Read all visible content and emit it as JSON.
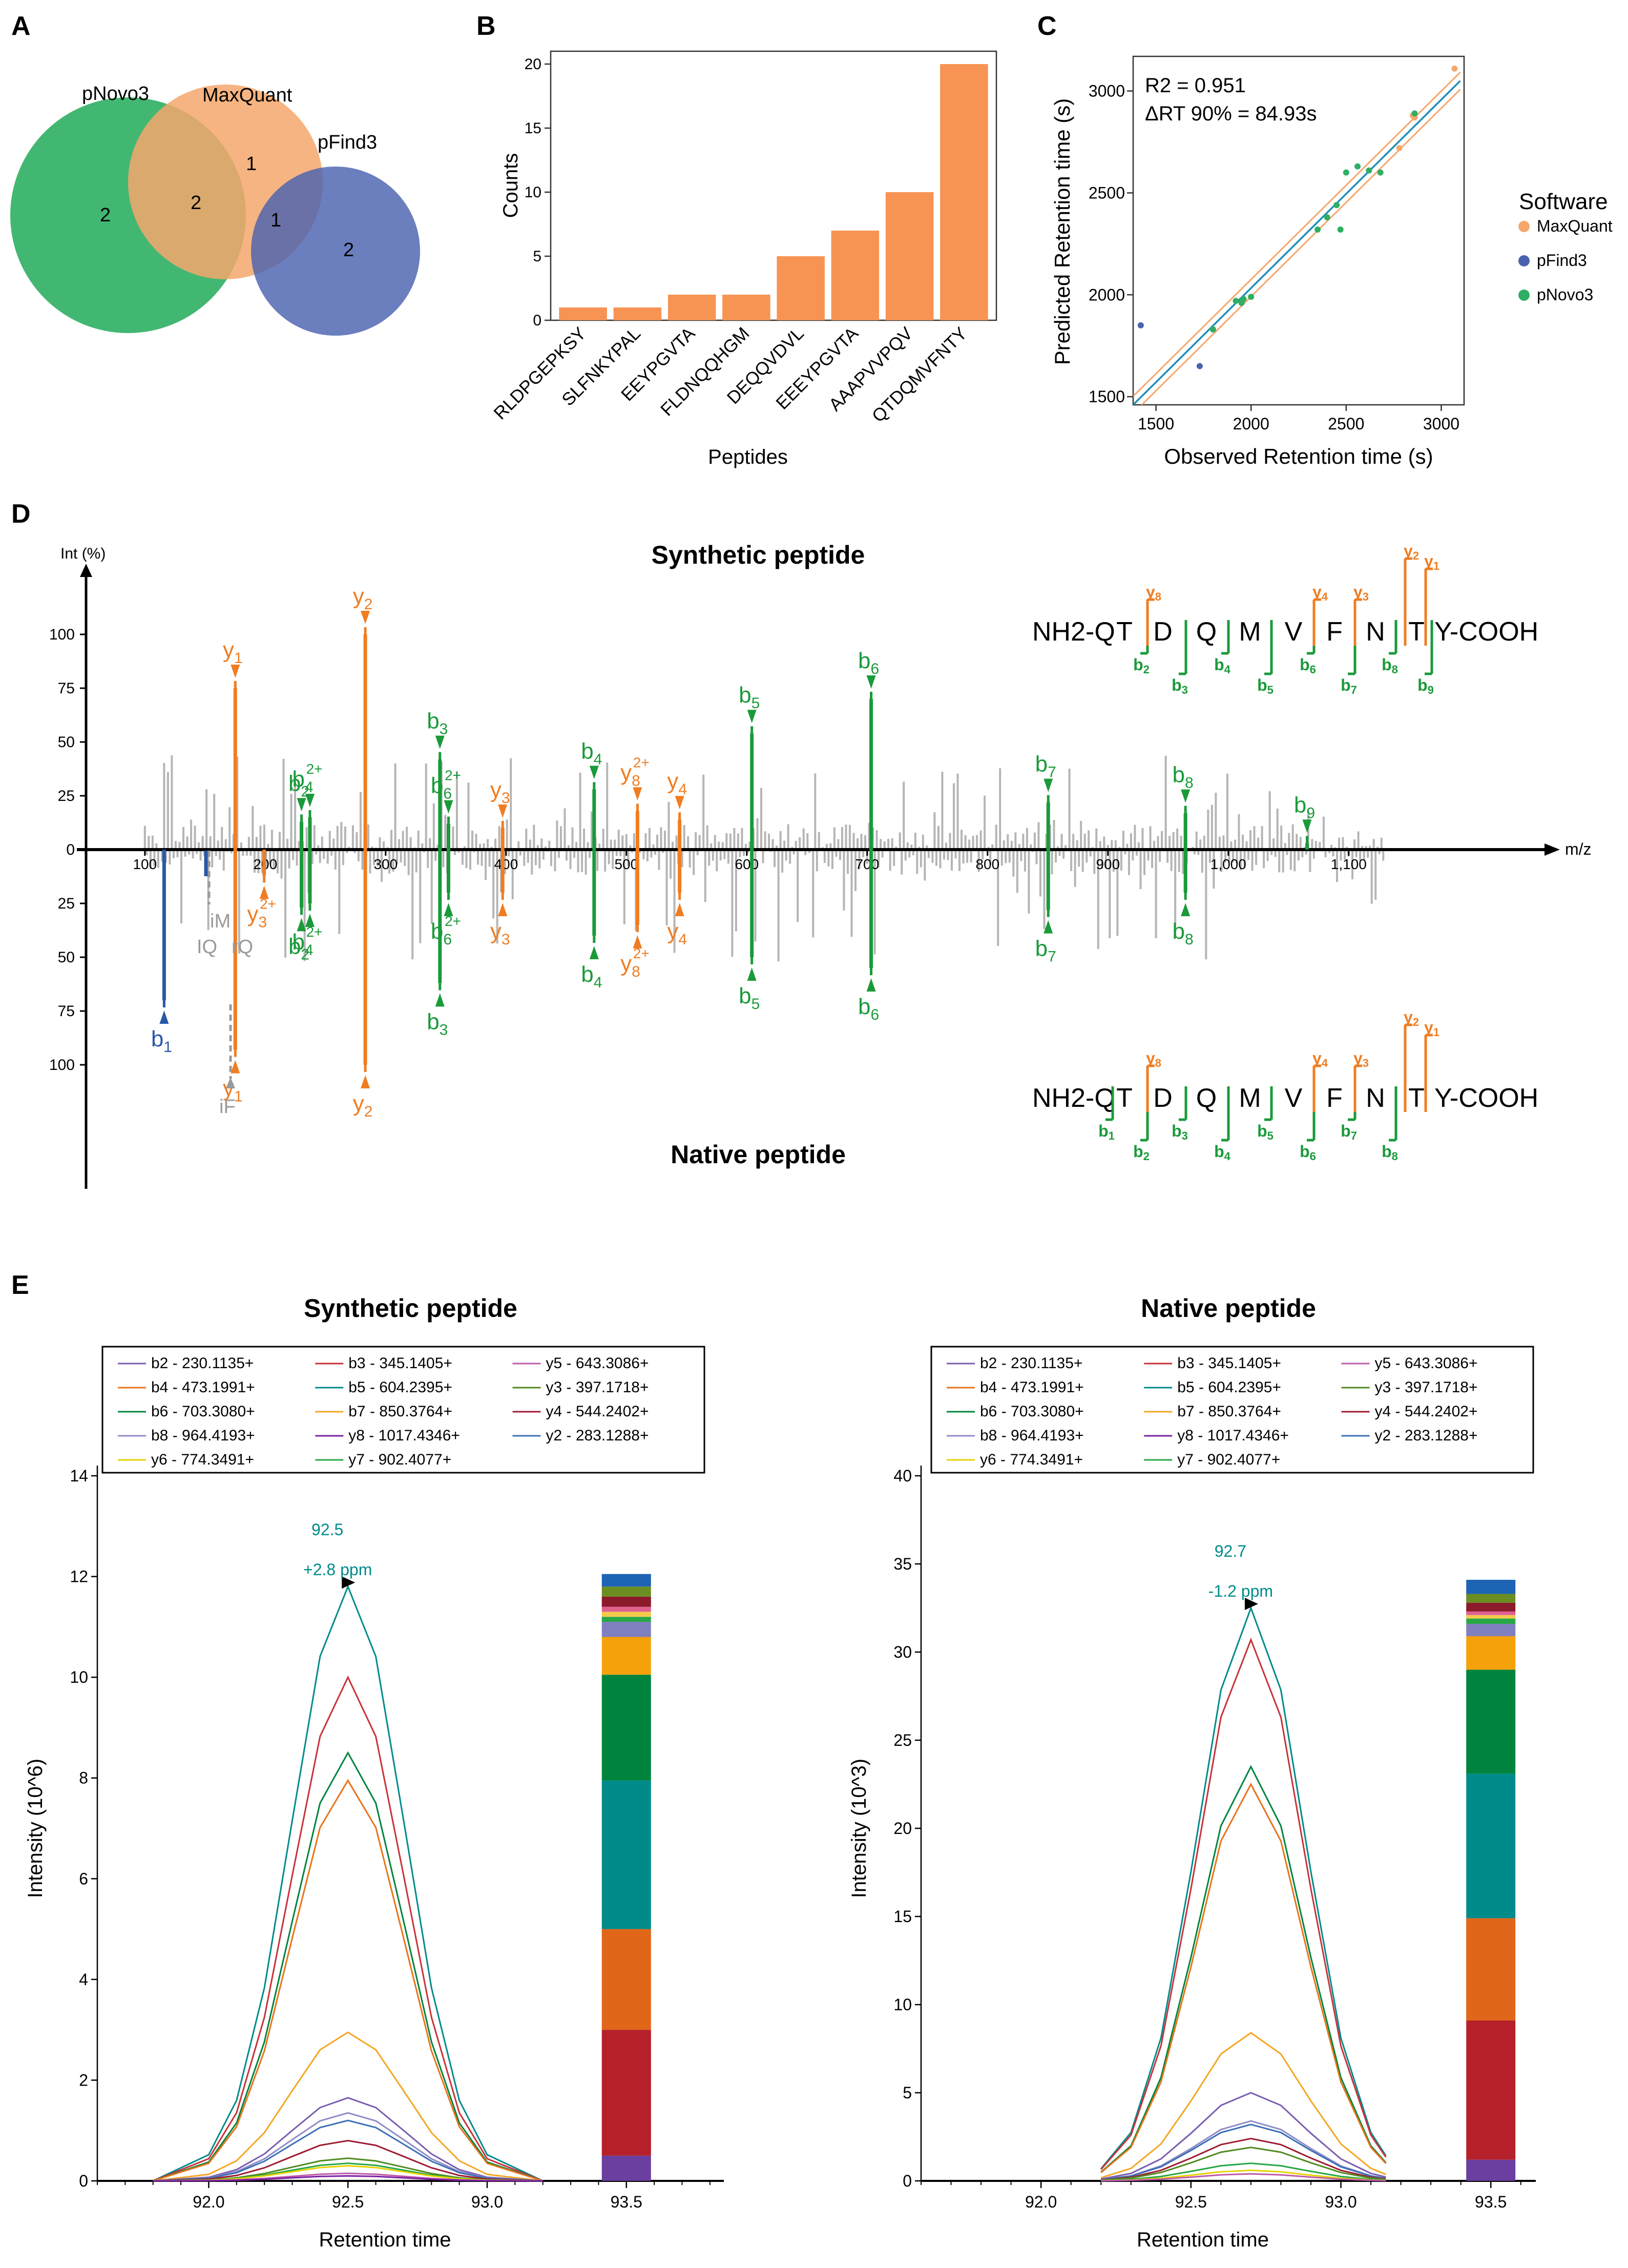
{
  "colors": {
    "maxquant": "#F5A76C",
    "pfind3": "#4A61AE",
    "pnovo3": "#2EAF63",
    "bar": "#F79454",
    "orange": "#F07D22",
    "green": "#1A9A3A",
    "blue": "#2A58A8",
    "gray": "#B5B5B5",
    "teal": "#008B8B",
    "fit": "#1F8FB4"
  },
  "panels": {
    "a": "A",
    "b": "B",
    "c": "C",
    "d": "D",
    "e": "E"
  },
  "panel_a": {
    "labels": [
      "pNovo3",
      "MaxQuant",
      "pFind3"
    ],
    "region_counts": {
      "pnovo_only": "2",
      "pnovo_maxquant": "2",
      "maxquant_only": "1",
      "maxquant_pfind": "1",
      "pfind_only": "2"
    }
  },
  "panel_c_text": {
    "r2": "R2 = 0.951",
    "drt": "ΔRT 90% = 84.93s"
  },
  "panel_d": {
    "synthetic_title": "Synthetic peptide",
    "native_title": "Native peptide",
    "y_axis_title": "Int (%)",
    "x_axis_title": "m/z",
    "x_ticks": [
      "100",
      "200",
      "300",
      "400",
      "500",
      "600",
      "700",
      "800",
      "900",
      "1,000",
      "1,100"
    ],
    "y_ticks_top": [
      "100",
      "75",
      "50",
      "25",
      "0"
    ],
    "y_ticks_bottom": [
      "25",
      "50",
      "75",
      "100"
    ],
    "sequence_prefix": "NH2-Q",
    "residues": [
      "T",
      "D",
      "Q",
      "M",
      "V",
      "F",
      "N",
      "T"
    ],
    "sequence_suffix": "Y-COOH",
    "seq_b_synthetic": [
      "b2",
      "b3",
      "b4",
      "b5",
      "b6",
      "b7",
      "b8",
      "b9"
    ],
    "seq_b_native": [
      "b1",
      "b2",
      "b3",
      "b4",
      "b5",
      "b6",
      "b7",
      "b8"
    ],
    "seq_y_labels": [
      "y8",
      "y4",
      "y3",
      "y2",
      "y1"
    ],
    "immonium_labels": [
      "iM",
      "IQ",
      "rQ",
      "iF"
    ],
    "top_peaks": [
      {
        "label": "y1",
        "sup": "",
        "mz": 175.1,
        "int": 75,
        "series": "y"
      },
      {
        "label": "y2",
        "sup": "",
        "mz": 283.1,
        "int": 100,
        "series": "y"
      },
      {
        "label": "b3",
        "sup": "",
        "mz": 345.1,
        "int": 42,
        "series": "b"
      },
      {
        "label": "b6",
        "sup": "2+",
        "mz": 352.2,
        "int": 12,
        "series": "b"
      },
      {
        "label": "y3",
        "sup": "",
        "mz": 397.2,
        "int": 10,
        "series": "y"
      },
      {
        "label": "b4",
        "sup": "",
        "mz": 473.2,
        "int": 28,
        "series": "b"
      },
      {
        "label": "y8",
        "sup": "2+",
        "mz": 509.2,
        "int": 18,
        "series": "y"
      },
      {
        "label": "y4",
        "sup": "",
        "mz": 544.2,
        "int": 14,
        "series": "y"
      },
      {
        "label": "b5",
        "sup": "",
        "mz": 604.2,
        "int": 54,
        "series": "b"
      },
      {
        "label": "b6",
        "sup": "",
        "mz": 703.3,
        "int": 70,
        "series": "b"
      },
      {
        "label": "b7",
        "sup": "",
        "mz": 850.4,
        "int": 22,
        "series": "b"
      },
      {
        "label": "b8",
        "sup": "",
        "mz": 964.4,
        "int": 17,
        "series": "b"
      },
      {
        "label": "b9",
        "sup": "",
        "mz": 1065.4,
        "int": 3,
        "series": "b"
      },
      {
        "label": "b2",
        "sup": "",
        "mz": 230.1,
        "int": 13,
        "series": "b"
      },
      {
        "label": "b4",
        "sup": "2+",
        "mz": 237.1,
        "int": 15,
        "series": "b"
      }
    ],
    "bottom_peaks": [
      {
        "label": "b1",
        "sup": "",
        "mz": 116.0,
        "int": 70,
        "series": "blue"
      },
      {
        "label": "y1",
        "sup": "",
        "mz": 175.1,
        "int": 93,
        "series": "y"
      },
      {
        "label": "y3",
        "sup": "2+",
        "mz": 199.1,
        "int": 12,
        "series": "y"
      },
      {
        "label": "b2",
        "sup": "",
        "mz": 230.1,
        "int": 27,
        "series": "b"
      },
      {
        "label": "b4",
        "sup": "2+",
        "mz": 237.1,
        "int": 25,
        "series": "b"
      },
      {
        "label": "y2",
        "sup": "",
        "mz": 283.1,
        "int": 100,
        "series": "y"
      },
      {
        "label": "b3",
        "sup": "",
        "mz": 345.1,
        "int": 62,
        "series": "b"
      },
      {
        "label": "b6",
        "sup": "2+",
        "mz": 352.2,
        "int": 20,
        "series": "b"
      },
      {
        "label": "y3",
        "sup": "",
        "mz": 397.2,
        "int": 20,
        "series": "y"
      },
      {
        "label": "b4",
        "sup": "",
        "mz": 473.2,
        "int": 40,
        "series": "b"
      },
      {
        "label": "y8",
        "sup": "2+",
        "mz": 509.2,
        "int": 35,
        "series": "y"
      },
      {
        "label": "y4",
        "sup": "",
        "mz": 544.2,
        "int": 20,
        "series": "y"
      },
      {
        "label": "b5",
        "sup": "",
        "mz": 604.2,
        "int": 50,
        "series": "b"
      },
      {
        "label": "b6",
        "sup": "",
        "mz": 703.3,
        "int": 55,
        "series": "b"
      },
      {
        "label": "b7",
        "sup": "",
        "mz": 850.4,
        "int": 28,
        "series": "b"
      },
      {
        "label": "b8",
        "sup": "",
        "mz": 964.4,
        "int": 20,
        "series": "b"
      }
    ]
  },
  "chart_data": [
    {
      "panel": "B",
      "type": "bar",
      "categories": [
        "RLDPGEPKSY",
        "SLFNKYPAL",
        "EEYPGVTA",
        "FLDNQQHGM",
        "DEQQVDVL",
        "EEEYPGVTA",
        "AAAPVVPQV",
        "QTDQMVFNTY"
      ],
      "values": [
        1,
        1,
        2,
        2,
        5,
        7,
        10,
        20
      ],
      "xlabel": "Peptides",
      "ylabel": "Counts",
      "ylim": [
        0,
        21
      ],
      "yticks": [
        0,
        5,
        10,
        15,
        20
      ]
    },
    {
      "panel": "C",
      "type": "scatter",
      "xlabel": "Observed Retention time (s)",
      "ylabel": "Predicted Retention time (s)",
      "xlim": [
        1380,
        3120
      ],
      "ylim": [
        1460,
        3170
      ],
      "xticks": [
        1500,
        2000,
        2500,
        3000
      ],
      "yticks": [
        1500,
        2000,
        2500,
        3000
      ],
      "legend_title": "Software",
      "legend_position": "right",
      "series": [
        {
          "name": "MaxQuant",
          "points": [
            [
              3070,
              3110
            ],
            [
              2780,
              2720
            ],
            [
              2850,
              2880
            ],
            [
              2860,
              2870
            ]
          ]
        },
        {
          "name": "pFind3",
          "points": [
            [
              1420,
              1850
            ],
            [
              1730,
              1650
            ]
          ]
        },
        {
          "name": "pNovo3",
          "points": [
            [
              1800,
              1830
            ],
            [
              1920,
              1970
            ],
            [
              1950,
              1960
            ],
            [
              1960,
              1980
            ],
            [
              2000,
              1990
            ],
            [
              2350,
              2320
            ],
            [
              2400,
              2380
            ],
            [
              2450,
              2440
            ],
            [
              2470,
              2320
            ],
            [
              2500,
              2600
            ],
            [
              2560,
              2630
            ],
            [
              2620,
              2610
            ],
            [
              2680,
              2600
            ],
            [
              2860,
              2890
            ]
          ]
        }
      ],
      "fit_line": [
        [
          1380,
          1460
        ],
        [
          3100,
          3050
        ]
      ],
      "band_offset": 42
    },
    {
      "panel": "E-synthetic",
      "type": "line",
      "title": "Synthetic peptide",
      "xlabel": "Retention time",
      "ylabel": "Intensity (10^6)",
      "x": [
        91.8,
        92.0,
        92.1,
        92.2,
        92.3,
        92.4,
        92.5,
        92.6,
        92.7,
        92.8,
        92.9,
        93.0,
        93.2
      ],
      "xlim": [
        91.6,
        93.85
      ],
      "ylim": [
        0,
        14
      ],
      "xticks": [
        92.0,
        92.5,
        93.0,
        93.5
      ],
      "yticks": [
        0,
        2,
        4,
        6,
        8,
        10,
        12,
        14
      ],
      "annotation": [
        "92.5",
        "+2.8 ppm"
      ],
      "annotation_x": 92.5,
      "annotation_y": 11.8,
      "legend": [
        "b2 - 230.1135+",
        "b3 - 345.1405+",
        "y5 - 643.3086+",
        "b4 - 473.1991+",
        "b5 - 604.2395+",
        "y3 - 397.1718+",
        "b6 - 703.3080+",
        "b7 - 850.3764+",
        "y4 - 544.2402+",
        "b8 - 964.4193+",
        "y8 - 1017.4346+",
        "y2 - 283.1288+",
        "y6 - 774.3491+",
        "y7 - 902.4077+"
      ],
      "series": [
        {
          "name": "b5 - 604.2395+",
          "color": "#008B8B",
          "peak": 11.8
        },
        {
          "name": "b3 - 345.1405+",
          "color": "#C8323A",
          "peak": 10.0
        },
        {
          "name": "b6 - 703.3080+",
          "color": "#00843D",
          "peak": 8.5
        },
        {
          "name": "b4 - 473.1991+",
          "color": "#E8731A",
          "peak": 7.95
        },
        {
          "name": "b7 - 850.3764+",
          "color": "#F5A623",
          "peak": 2.95
        },
        {
          "name": "b2 - 230.1135+",
          "color": "#7A5CB0",
          "peak": 1.65
        },
        {
          "name": "b8 - 964.4193+",
          "color": "#8F8CC8",
          "peak": 1.35
        },
        {
          "name": "y2 - 283.1288+",
          "color": "#3B6FB6",
          "peak": 1.2
        },
        {
          "name": "y4 - 544.2402+",
          "color": "#9E1B32",
          "peak": 0.8
        },
        {
          "name": "y3 - 397.1718+",
          "color": "#4F8A1E",
          "peak": 0.45
        },
        {
          "name": "y7 - 902.4077+",
          "color": "#27A745",
          "peak": 0.35
        },
        {
          "name": "y6 - 774.3491+",
          "color": "#E6D200",
          "peak": 0.3
        },
        {
          "name": "y5 - 643.3086+",
          "color": "#C05AA8",
          "peak": 0.15
        },
        {
          "name": "y8 - 1017.4346+",
          "color": "#7B1FA2",
          "peak": 0.1
        }
      ],
      "stack": [
        {
          "color": "#6A3FA0",
          "value": 0.5
        },
        {
          "color": "#B5202A",
          "value": 2.5
        },
        {
          "color": "#E0661A",
          "value": 2.0
        },
        {
          "color": "#008B8B",
          "value": 2.95
        },
        {
          "color": "#00843D",
          "value": 2.1
        },
        {
          "color": "#F5A10A",
          "value": 0.75
        },
        {
          "color": "#8080C0",
          "value": 0.3
        },
        {
          "color": "#27A745",
          "value": 0.1
        },
        {
          "color": "#F2C94C",
          "value": 0.1
        },
        {
          "color": "#E06090",
          "value": 0.1
        },
        {
          "color": "#8B1A2B",
          "value": 0.2
        },
        {
          "color": "#6B8E23",
          "value": 0.2
        },
        {
          "color": "#1E64B4",
          "value": 0.25
        }
      ]
    },
    {
      "panel": "E-native",
      "type": "line",
      "title": "Native peptide",
      "xlabel": "Retention time",
      "ylabel": "Intensity  (10^3)",
      "x": [
        92.2,
        92.3,
        92.4,
        92.5,
        92.6,
        92.7,
        92.8,
        92.9,
        93.0,
        93.1,
        93.15
      ],
      "xlim": [
        91.6,
        93.65
      ],
      "ylim": [
        0,
        40
      ],
      "xticks": [
        92.0,
        92.5,
        93.0,
        93.5
      ],
      "yticks": [
        0,
        5,
        10,
        15,
        20,
        25,
        30,
        35,
        40
      ],
      "annotation": [
        "92.7",
        "-1.2 ppm"
      ],
      "annotation_x": 92.7,
      "annotation_y": 32.5,
      "legend": [
        "b2 - 230.1135+",
        "b3 - 345.1405+",
        "y5 - 643.3086+",
        "b4 - 473.1991+",
        "b5 - 604.2395+",
        "y3 - 397.1718+",
        "b6 - 703.3080+",
        "b7 - 850.3764+",
        "y4 - 544.2402+",
        "b8 - 964.4193+",
        "y8 - 1017.4346+",
        "y2 - 283.1288+",
        "y6 - 774.3491+",
        "y7 - 902.4077+"
      ],
      "series": [
        {
          "name": "b5 - 604.2395+",
          "color": "#008B8B",
          "peak": 32.5
        },
        {
          "name": "b3 - 345.1405+",
          "color": "#C8323A",
          "peak": 30.7
        },
        {
          "name": "b6 - 703.3080+",
          "color": "#00843D",
          "peak": 23.5
        },
        {
          "name": "b4 - 473.1991+",
          "color": "#E8731A",
          "peak": 22.5
        },
        {
          "name": "b7 - 850.3764+",
          "color": "#F5A623",
          "peak": 8.4
        },
        {
          "name": "b2 - 230.1135+",
          "color": "#7A5CB0",
          "peak": 5.0
        },
        {
          "name": "b8 - 964.4193+",
          "color": "#8F8CC8",
          "peak": 3.4
        },
        {
          "name": "y2 - 283.1288+",
          "color": "#3B6FB6",
          "peak": 3.2
        },
        {
          "name": "y4 - 544.2402+",
          "color": "#9E1B32",
          "peak": 2.4
        },
        {
          "name": "y3 - 397.1718+",
          "color": "#4F8A1E",
          "peak": 1.9
        },
        {
          "name": "y7 - 902.4077+",
          "color": "#27A745",
          "peak": 1.0
        },
        {
          "name": "y6 - 774.3491+",
          "color": "#E6D200",
          "peak": 0.6
        },
        {
          "name": "y5 - 643.3086+",
          "color": "#C05AA8",
          "peak": 0.4
        }
      ],
      "stack": [
        {
          "color": "#6A3FA0",
          "value": 1.2
        },
        {
          "color": "#B5202A",
          "value": 7.9
        },
        {
          "color": "#E0661A",
          "value": 5.8
        },
        {
          "color": "#008B8B",
          "value": 8.2
        },
        {
          "color": "#00843D",
          "value": 5.9
        },
        {
          "color": "#F5A10A",
          "value": 1.9
        },
        {
          "color": "#8080C0",
          "value": 0.7
        },
        {
          "color": "#27A745",
          "value": 0.3
        },
        {
          "color": "#F2C94C",
          "value": 0.2
        },
        {
          "color": "#E06090",
          "value": 0.2
        },
        {
          "color": "#8B1A2B",
          "value": 0.5
        },
        {
          "color": "#6B8E23",
          "value": 0.5
        },
        {
          "color": "#1E64B4",
          "value": 0.8
        }
      ]
    }
  ]
}
